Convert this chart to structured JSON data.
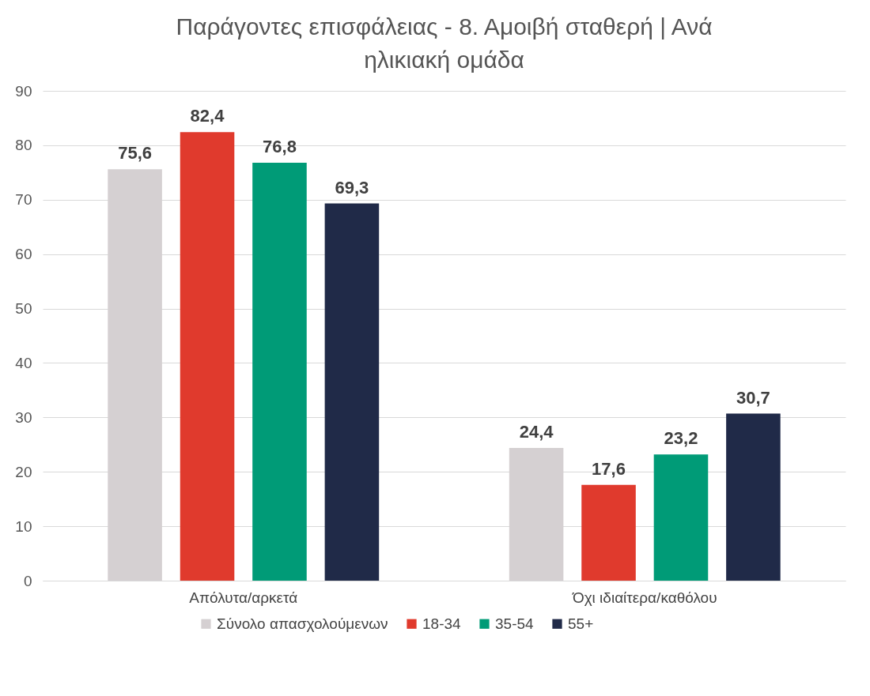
{
  "chart_data": {
    "type": "bar",
    "title": "Παράγοντες επισφάλειας - 8. Αμοιβή σταθερή | Ανά ηλικιακή ομάδα",
    "categories": [
      "Απόλυτα/αρκετά",
      "Όχι ιδιαίτερα/καθόλου"
    ],
    "series": [
      {
        "name": "Σύνολο απασχολούμενων",
        "color": "#d5d0d2",
        "values": [
          75.6,
          24.4
        ],
        "value_labels": [
          "75,6",
          "24,4"
        ]
      },
      {
        "name": "18-34",
        "color": "#e03a2d",
        "values": [
          82.4,
          17.6
        ],
        "value_labels": [
          "82,4",
          "17,6"
        ]
      },
      {
        "name": "35-54",
        "color": "#009b77",
        "values": [
          76.8,
          23.2
        ],
        "value_labels": [
          "76,8",
          "23,2"
        ]
      },
      {
        "name": "55+",
        "color": "#202a48",
        "values": [
          69.3,
          30.7
        ],
        "value_labels": [
          "69,3",
          "30,7"
        ]
      }
    ],
    "ylim": [
      0,
      90
    ],
    "yticks": [
      0,
      10,
      20,
      30,
      40,
      50,
      60,
      70,
      80,
      90
    ],
    "grid": "y",
    "legend": "bottom"
  }
}
